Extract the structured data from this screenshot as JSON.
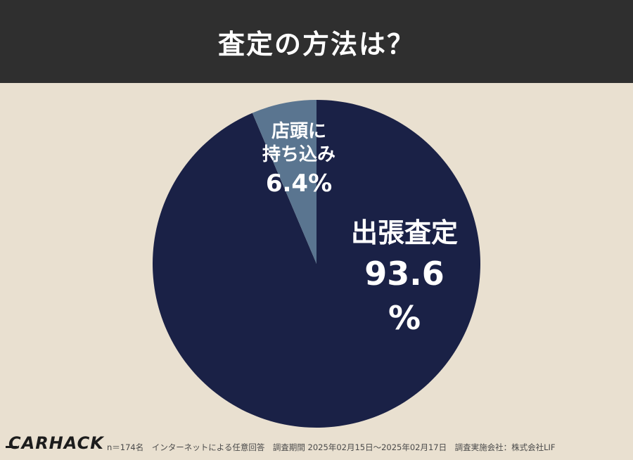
{
  "header": {
    "title": "査定の方法は？"
  },
  "chart_data": {
    "type": "pie",
    "title": "査定の方法は？",
    "slices": [
      {
        "label": "出張査定",
        "value": 93.6,
        "color": "#1a2146"
      },
      {
        "label": "店頭に持ち込み",
        "value": 6.4,
        "color": "#5a7590"
      }
    ]
  },
  "labels": {
    "small": {
      "line1": "店頭に",
      "line2": "持ち込み",
      "value": "6.4%"
    },
    "big": {
      "name": "出張査定",
      "value": "93.6",
      "unit": "%"
    }
  },
  "footer": {
    "logo": "CARHACK",
    "note": "n＝174名　インターネットによる任意回答　調査期間 2025年02月15日〜2025年02月17日　調査実施会社：株式会社LIF"
  }
}
